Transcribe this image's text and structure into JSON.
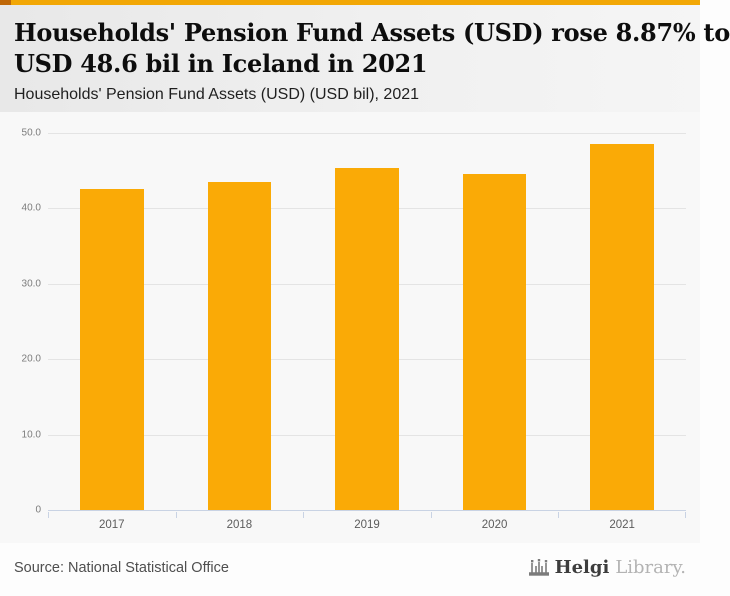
{
  "header": {
    "title_line1": "Households' Pension Fund Assets (USD) rose 8.87% to",
    "title_line2": "USD 48.6 bil in Iceland in 2021",
    "subtitle": "Households' Pension Fund Assets (USD) (USD bil), 2021"
  },
  "chart_data": {
    "type": "bar",
    "title": "Households' Pension Fund Assets (USD) rose 8.87% to USD 48.6 bil in Iceland in 2021",
    "subtitle": "Households' Pension Fund Assets (USD) (USD bil), 2021",
    "categories": [
      "2017",
      "2018",
      "2019",
      "2020",
      "2021"
    ],
    "values": [
      42.6,
      43.5,
      45.4,
      44.6,
      48.6
    ],
    "unit": "USD bil",
    "ylim": [
      0,
      50
    ],
    "yticks": [
      "0",
      "10.0",
      "20.0",
      "30.0",
      "40.0",
      "50.0"
    ],
    "grid": "horizontal",
    "legend": "none",
    "bar_color": "#FAAA06"
  },
  "footer": {
    "source": "Source: National Statistical Office",
    "logo_bold": "Helgi",
    "logo_light": "Library."
  },
  "colors": {
    "top_accent": "#F2A705",
    "corner_square": "#BF6707",
    "axis_line": "#C9D3E4",
    "gridline": "#E4E4E4"
  }
}
